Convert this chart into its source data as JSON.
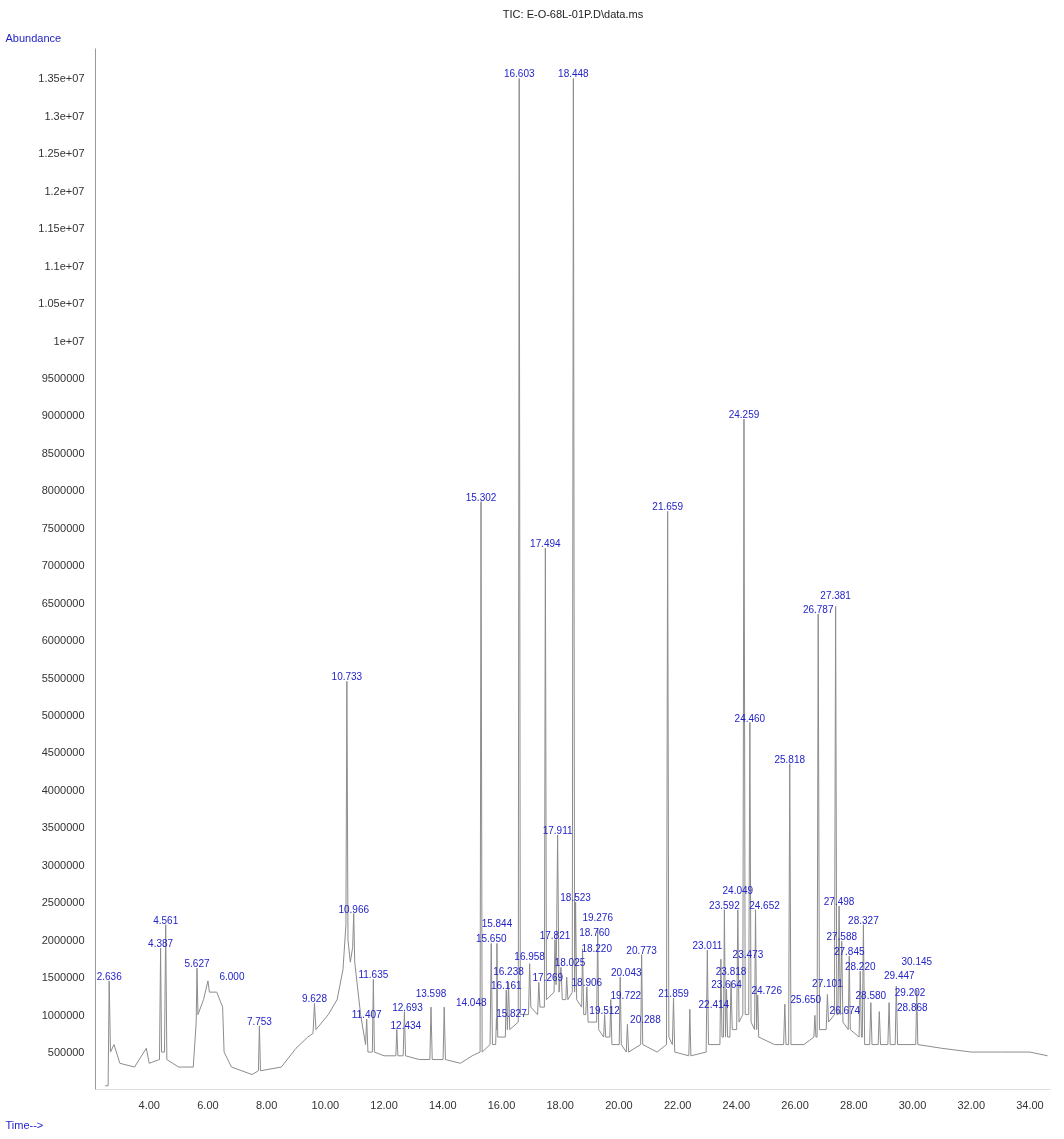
{
  "chart_data": {
    "type": "line",
    "title": "TIC: E-O-68L-01P.D\\data.ms",
    "xlabel": "Time-->",
    "ylabel": "Abundance",
    "xlim": [
      2.17,
      34.7
    ],
    "ylim": [
      0,
      13900000
    ],
    "xticks": [
      {
        "value": 4,
        "label": "4.00"
      },
      {
        "value": 6,
        "label": "6.00"
      },
      {
        "value": 8,
        "label": "8.00"
      },
      {
        "value": 10,
        "label": "10.00"
      },
      {
        "value": 12,
        "label": "12.00"
      },
      {
        "value": 14,
        "label": "14.00"
      },
      {
        "value": 16,
        "label": "16.00"
      },
      {
        "value": 18,
        "label": "18.00"
      },
      {
        "value": 20,
        "label": "20.00"
      },
      {
        "value": 22,
        "label": "22.00"
      },
      {
        "value": 24,
        "label": "24.00"
      },
      {
        "value": 26,
        "label": "26.00"
      },
      {
        "value": 28,
        "label": "28.00"
      },
      {
        "value": 30,
        "label": "30.00"
      },
      {
        "value": 32,
        "label": "32.00"
      },
      {
        "value": 34,
        "label": "34.00"
      }
    ],
    "yticks": [
      500000,
      1000000,
      1500000,
      2000000,
      2500000,
      3000000,
      3500000,
      4000000,
      4500000,
      5000000,
      5500000,
      6000000,
      6500000,
      7000000,
      7500000,
      8000000,
      8500000,
      9000000,
      9500000,
      {
        "value": 10000000,
        "label": "1e+07"
      },
      {
        "value": 10500000,
        "label": "1.05e+07"
      },
      {
        "value": 11000000,
        "label": "1.1e+07"
      },
      {
        "value": 11500000,
        "label": "1.15e+07"
      },
      {
        "value": 12000000,
        "label": "1.2e+07"
      },
      {
        "value": 12500000,
        "label": "1.25e+07"
      },
      {
        "value": 13000000,
        "label": "1.3e+07"
      },
      {
        "value": 13500000,
        "label": "1.35e+07"
      }
    ],
    "grid": false,
    "marker": "none",
    "line_style": "solid",
    "series": [
      {
        "color": "#8c8c8c",
        "x": [
          2.5,
          2.6,
          2.636,
          2.68,
          2.8,
          3.0,
          3.5,
          3.9,
          4.0,
          4.35,
          4.387,
          4.42,
          4.52,
          4.561,
          4.6,
          5.0,
          5.5,
          5.6,
          5.627,
          5.66,
          5.85,
          6.0,
          6.05,
          6.3,
          6.5,
          6.55,
          6.8,
          7.5,
          7.72,
          7.753,
          7.79,
          8.5,
          9.0,
          9.4,
          9.58,
          9.628,
          9.68,
          10.1,
          10.4,
          10.6,
          10.7,
          10.733,
          10.77,
          10.85,
          10.93,
          10.966,
          11.0,
          11.2,
          11.37,
          11.407,
          11.45,
          11.6,
          11.635,
          11.67,
          12.0,
          12.4,
          12.434,
          12.47,
          12.65,
          12.693,
          12.73,
          13.2,
          13.56,
          13.598,
          13.64,
          14.01,
          14.048,
          14.09,
          14.6,
          15.0,
          15.27,
          15.302,
          15.34,
          15.61,
          15.65,
          15.69,
          15.8,
          15.827,
          15.835,
          15.844,
          15.87,
          16.13,
          16.161,
          16.2,
          16.238,
          16.28,
          16.57,
          16.603,
          16.64,
          16.92,
          16.958,
          17.0,
          17.23,
          17.269,
          17.31,
          17.46,
          17.494,
          17.53,
          17.79,
          17.821,
          17.86,
          17.911,
          17.96,
          18.025,
          18.07,
          18.19,
          18.22,
          18.26,
          18.41,
          18.448,
          18.49,
          18.523,
          18.56,
          18.73,
          18.76,
          18.8,
          18.87,
          18.906,
          18.95,
          19.24,
          19.276,
          19.31,
          19.48,
          19.512,
          19.55,
          19.69,
          19.722,
          19.76,
          20.01,
          20.043,
          20.08,
          20.25,
          20.288,
          20.33,
          20.74,
          20.773,
          20.81,
          21.3,
          21.62,
          21.659,
          21.7,
          21.82,
          21.859,
          21.9,
          22.38,
          22.414,
          22.45,
          22.97,
          23.011,
          23.05,
          23.44,
          23.473,
          23.51,
          23.56,
          23.592,
          23.63,
          23.664,
          23.7,
          23.78,
          23.818,
          23.86,
          24.01,
          24.049,
          24.09,
          24.22,
          24.259,
          24.3,
          24.42,
          24.46,
          24.5,
          24.62,
          24.652,
          24.69,
          24.726,
          24.76,
          25.3,
          25.61,
          25.65,
          25.69,
          25.78,
          25.818,
          25.86,
          26.3,
          26.64,
          26.674,
          26.71,
          26.75,
          26.787,
          26.83,
          27.06,
          27.101,
          27.14,
          27.34,
          27.381,
          27.42,
          27.46,
          27.498,
          27.54,
          27.588,
          27.63,
          27.81,
          27.845,
          27.88,
          28.18,
          28.22,
          28.26,
          28.29,
          28.327,
          28.37,
          28.54,
          28.58,
          28.62,
          28.83,
          28.868,
          28.91,
          29.16,
          29.202,
          29.24,
          29.41,
          29.447,
          29.49,
          30.11,
          30.145,
          30.18,
          31.0,
          32.0,
          33.0,
          34.0,
          34.6
        ],
        "values": [
          50000,
          50000,
          1450000,
          500000,
          600000,
          350000,
          300000,
          550000,
          350000,
          400000,
          1890000,
          500000,
          500000,
          2200000,
          400000,
          300000,
          300000,
          900000,
          1620000,
          1000000,
          1200000,
          1450000,
          1300000,
          1300000,
          1100000,
          500000,
          300000,
          200000,
          250000,
          850000,
          250000,
          300000,
          550000,
          700000,
          750000,
          1150000,
          800000,
          1000000,
          1200000,
          1600000,
          2200000,
          5450000,
          2000000,
          1700000,
          1900000,
          2350000,
          1700000,
          1000000,
          600000,
          940000,
          500000,
          500000,
          1470000,
          500000,
          450000,
          450000,
          800000,
          450000,
          450000,
          1040000,
          450000,
          400000,
          400000,
          1100000,
          400000,
          400000,
          1100000,
          400000,
          350000,
          450000,
          500000,
          7850000,
          500000,
          600000,
          1950000,
          600000,
          600000,
          950000,
          800000,
          1950000,
          700000,
          700000,
          1330000,
          800000,
          1430000,
          800000,
          900000,
          13500000,
          1000000,
          1000000,
          1680000,
          1100000,
          1000000,
          1430000,
          1100000,
          1100000,
          7230000,
          1200000,
          1300000,
          2000000,
          1400000,
          3400000,
          1300000,
          1630000,
          1200000,
          1200000,
          1500000,
          1200000,
          1300000,
          13500000,
          1300000,
          2500000,
          1200000,
          1100000,
          1880000,
          1000000,
          1000000,
          1370000,
          900000,
          900000,
          2150000,
          800000,
          700000,
          1000000,
          700000,
          700000,
          1200000,
          600000,
          600000,
          1500000,
          600000,
          500000,
          870000,
          500000,
          600000,
          1800000,
          600000,
          500000,
          600000,
          7720000,
          700000,
          600000,
          1220000,
          500000,
          450000,
          1070000,
          450000,
          500000,
          1860000,
          600000,
          600000,
          1740000,
          700000,
          700000,
          2400000,
          700000,
          1340000,
          700000,
          700000,
          1440000,
          800000,
          800000,
          2400000,
          900000,
          1000000,
          8950000,
          1000000,
          1000000,
          4900000,
          900000,
          800000,
          2400000,
          800000,
          1260000,
          700000,
          600000,
          600000,
          1140000,
          600000,
          600000,
          4350000,
          600000,
          600000,
          700000,
          990000,
          700000,
          700000,
          6350000,
          800000,
          800000,
          1270000,
          900000,
          1000000,
          6450000,
          1000000,
          1000000,
          2450000,
          1000000,
          1980000,
          900000,
          800000,
          1780000,
          800000,
          700000,
          1580000,
          700000,
          700000,
          2200000,
          600000,
          600000,
          1160000,
          600000,
          600000,
          1040000,
          600000,
          600000,
          1160000,
          600000,
          600000,
          1380000,
          600000,
          600000,
          1330000,
          600000,
          550000,
          500000,
          500000,
          500000,
          450000
        ]
      }
    ],
    "annotations": [
      {
        "text": "2.636",
        "x": 2.636,
        "y": 1450000
      },
      {
        "text": "4.387",
        "x": 4.387,
        "y": 1890000
      },
      {
        "text": "4.561",
        "x": 4.561,
        "y": 2200000
      },
      {
        "text": "5.627",
        "x": 5.627,
        "y": 1620000
      },
      {
        "text": "6.000",
        "x": 6.0,
        "y": 1450000
      },
      {
        "text": "7.753",
        "x": 7.753,
        "y": 850000
      },
      {
        "text": "9.628",
        "x": 9.628,
        "y": 1150000
      },
      {
        "text": "10.733",
        "x": 10.733,
        "y": 5450000
      },
      {
        "text": "10.966",
        "x": 10.966,
        "y": 2350000
      },
      {
        "text": "11.407",
        "x": 11.407,
        "y": 940000
      },
      {
        "text": "11.635",
        "x": 11.635,
        "y": 1470000
      },
      {
        "text": "12.434",
        "x": 12.434,
        "y": 800000
      },
      {
        "text": "12.693",
        "x": 12.693,
        "y": 1040000
      },
      {
        "text": "13.598",
        "x": 13.598,
        "y": 1100000
      },
      {
        "text": "14.048",
        "x": 14.048,
        "y": 1100000
      },
      {
        "text": "15.302",
        "x": 15.302,
        "y": 7850000
      },
      {
        "text": "15.650",
        "x": 15.65,
        "y": 1950000
      },
      {
        "text": "15.827",
        "x": 15.827,
        "y": 950000
      },
      {
        "text": "15.844",
        "x": 15.844,
        "y": 1950000
      },
      {
        "text": "16.161",
        "x": 16.161,
        "y": 1330000
      },
      {
        "text": "16.238",
        "x": 16.238,
        "y": 1430000
      },
      {
        "text": "16.603",
        "x": 16.603,
        "y": 13500000
      },
      {
        "text": "16.958",
        "x": 16.958,
        "y": 1680000
      },
      {
        "text": "17.269",
        "x": 17.269,
        "y": 1430000
      },
      {
        "text": "17.494",
        "x": 17.494,
        "y": 7230000
      },
      {
        "text": "17.821",
        "x": 17.821,
        "y": 2000000
      },
      {
        "text": "17.911",
        "x": 17.911,
        "y": 3400000
      },
      {
        "text": "18.025",
        "x": 18.025,
        "y": 1630000
      },
      {
        "text": "18.220",
        "x": 18.22,
        "y": 1500000
      },
      {
        "text": "18.448",
        "x": 18.448,
        "y": 13500000
      },
      {
        "text": "18.523",
        "x": 18.523,
        "y": 2500000
      },
      {
        "text": "18.760",
        "x": 18.76,
        "y": 1880000
      },
      {
        "text": "18.906",
        "x": 18.906,
        "y": 1370000
      },
      {
        "text": "19.276",
        "x": 19.276,
        "y": 2150000
      },
      {
        "text": "19.512",
        "x": 19.512,
        "y": 1000000
      },
      {
        "text": "19.722",
        "x": 19.722,
        "y": 1200000
      },
      {
        "text": "20.043",
        "x": 20.043,
        "y": 1500000
      },
      {
        "text": "20.288",
        "x": 20.288,
        "y": 870000
      },
      {
        "text": "20.773",
        "x": 20.773,
        "y": 1800000
      },
      {
        "text": "21.659",
        "x": 21.659,
        "y": 7720000
      },
      {
        "text": "21.859",
        "x": 21.859,
        "y": 1220000
      },
      {
        "text": "22.414",
        "x": 22.414,
        "y": 1070000
      },
      {
        "text": "23.011",
        "x": 23.011,
        "y": 1860000
      },
      {
        "text": "23.473",
        "x": 23.473,
        "y": 1740000
      },
      {
        "text": "23.592",
        "x": 23.592,
        "y": 2400000
      },
      {
        "text": "23.664",
        "x": 23.664,
        "y": 1340000
      },
      {
        "text": "23.818",
        "x": 23.818,
        "y": 1440000
      },
      {
        "text": "24.049",
        "x": 24.049,
        "y": 2400000
      },
      {
        "text": "24.259",
        "x": 24.259,
        "y": 8950000
      },
      {
        "text": "24.460",
        "x": 24.46,
        "y": 4900000
      },
      {
        "text": "24.652",
        "x": 24.652,
        "y": 2400000
      },
      {
        "text": "24.726",
        "x": 24.726,
        "y": 1260000
      },
      {
        "text": "25.650",
        "x": 25.65,
        "y": 1140000
      },
      {
        "text": "25.818",
        "x": 25.818,
        "y": 4350000
      },
      {
        "text": "26.674",
        "x": 26.674,
        "y": 990000
      },
      {
        "text": "26.787",
        "x": 26.787,
        "y": 6350000
      },
      {
        "text": "27.101",
        "x": 27.101,
        "y": 1270000
      },
      {
        "text": "27.381",
        "x": 27.381,
        "y": 6450000
      },
      {
        "text": "27.498",
        "x": 27.498,
        "y": 2450000
      },
      {
        "text": "27.588",
        "x": 27.588,
        "y": 1980000
      },
      {
        "text": "27.845",
        "x": 27.845,
        "y": 1780000
      },
      {
        "text": "28.220",
        "x": 28.22,
        "y": 1580000
      },
      {
        "text": "28.327",
        "x": 28.327,
        "y": 2200000
      },
      {
        "text": "28.580",
        "x": 28.58,
        "y": 1160000
      },
      {
        "text": "28.868",
        "x": 28.868,
        "y": 1040000
      },
      {
        "text": "29.202",
        "x": 29.202,
        "y": 1160000
      },
      {
        "text": "29.447",
        "x": 29.447,
        "y": 1380000
      },
      {
        "text": "30.145",
        "x": 30.145,
        "y": 1330000
      }
    ]
  }
}
